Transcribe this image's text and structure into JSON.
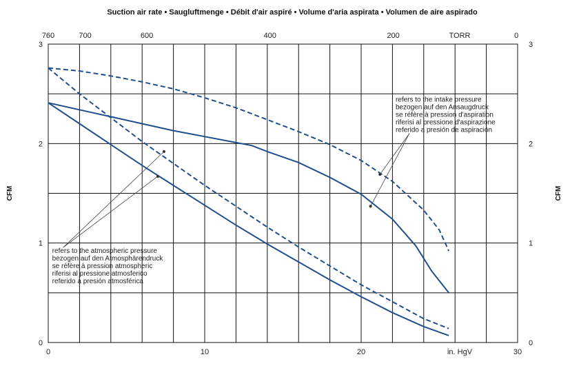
{
  "chart_data": {
    "type": "line",
    "title": "Suction air rate  •  Saugluftmenge  •  Débit d'air aspiré  •  Volume d'aria aspirata  •  Volumen de aire aspirado",
    "ylabel_left": "CFM",
    "ylabel_right": "CFM",
    "xlim": [
      0,
      30
    ],
    "ylim": [
      0,
      3
    ],
    "x_ticks": [
      "0",
      "10",
      "20",
      "30"
    ],
    "x_unit_label": "in. HgV",
    "y_ticks_left": [
      "0",
      "1",
      "2",
      "3"
    ],
    "y_ticks_right": [
      "0",
      "1",
      "2",
      "3"
    ],
    "top_ticks": [
      {
        "label": "760",
        "x": 0
      },
      {
        "label": "700",
        "x": 2.36
      },
      {
        "label": "600",
        "x": 6.3
      },
      {
        "label": "400",
        "x": 14.17
      },
      {
        "label": "200",
        "x": 22.05
      },
      {
        "label": "TORR",
        "x": 26.3
      },
      {
        "label": "0",
        "x": 29.92
      }
    ],
    "grid": true,
    "series": [
      {
        "style": "dashed",
        "color": "#1f4e8c",
        "points": [
          [
            0,
            2.76
          ],
          [
            2,
            2.73
          ],
          [
            4,
            2.68
          ],
          [
            6,
            2.62
          ],
          [
            8,
            2.55
          ],
          [
            10,
            2.46
          ],
          [
            12,
            2.36
          ],
          [
            14,
            2.24
          ],
          [
            16,
            2.12
          ],
          [
            18,
            1.99
          ],
          [
            20,
            1.83
          ],
          [
            22,
            1.62
          ],
          [
            24,
            1.33
          ],
          [
            25,
            1.13
          ],
          [
            25.6,
            0.92
          ]
        ]
      },
      {
        "style": "solid",
        "color": "#1f4e8c",
        "points": [
          [
            0,
            2.41
          ],
          [
            2,
            2.34
          ],
          [
            4,
            2.27
          ],
          [
            6,
            2.2
          ],
          [
            8,
            2.13
          ],
          [
            10,
            2.07
          ],
          [
            12,
            2.01
          ],
          [
            13,
            1.98
          ],
          [
            14,
            1.92
          ],
          [
            16,
            1.81
          ],
          [
            18,
            1.66
          ],
          [
            20,
            1.49
          ],
          [
            22,
            1.24
          ],
          [
            23.5,
            0.97
          ],
          [
            24.5,
            0.72
          ],
          [
            25.6,
            0.5
          ]
        ]
      },
      {
        "style": "dashed",
        "color": "#1f4e8c",
        "points": [
          [
            0,
            2.76
          ],
          [
            2,
            2.5
          ],
          [
            4,
            2.26
          ],
          [
            6,
            2.02
          ],
          [
            8,
            1.8
          ],
          [
            10,
            1.58
          ],
          [
            12,
            1.37
          ],
          [
            14,
            1.16
          ],
          [
            16,
            0.96
          ],
          [
            18,
            0.77
          ],
          [
            20,
            0.58
          ],
          [
            22,
            0.41
          ],
          [
            24,
            0.24
          ],
          [
            25.6,
            0.14
          ]
        ]
      },
      {
        "style": "solid",
        "color": "#1f4e8c",
        "points": [
          [
            0,
            2.41
          ],
          [
            2,
            2.2
          ],
          [
            4,
            1.99
          ],
          [
            6,
            1.78
          ],
          [
            8,
            1.58
          ],
          [
            10,
            1.38
          ],
          [
            12,
            1.18
          ],
          [
            14,
            0.99
          ],
          [
            16,
            0.81
          ],
          [
            18,
            0.63
          ],
          [
            20,
            0.46
          ],
          [
            22,
            0.3
          ],
          [
            24,
            0.16
          ],
          [
            25.6,
            0.07
          ]
        ]
      }
    ],
    "annotations": {
      "intake": {
        "lines": [
          "refers to the intake pressure",
          "bezogen auf den Ansaugdruck",
          "se réfère à pression d'aspiration",
          "riferisi al pressione d'aspirazione",
          "referido a presión de aspiración"
        ],
        "text_at": [
          22.2,
          2.42
        ],
        "targets": [
          [
            21.2,
            1.69
          ],
          [
            20.6,
            1.37
          ]
        ]
      },
      "atmospheric": {
        "lines": [
          "refers to the atmospheric pressure",
          "bezogen auf den Atmosphärendruck",
          "se réfère à pression atmospheric",
          "riferisi al pressione atmosferico",
          "referido a presión atmosférica"
        ],
        "text_at": [
          0.25,
          0.9
        ],
        "targets": [
          [
            7.4,
            1.92
          ],
          [
            7.0,
            1.67
          ]
        ]
      }
    }
  }
}
